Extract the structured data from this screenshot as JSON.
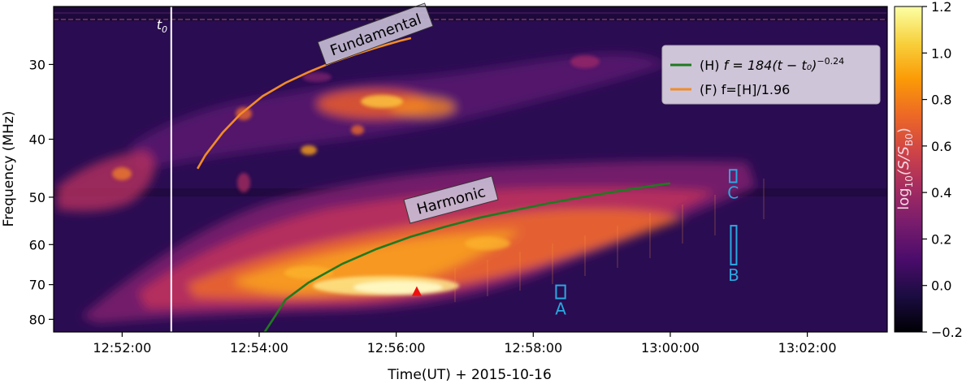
{
  "chart_data": {
    "type": "heatmap",
    "xlabel": "Time(UT) + 2015-10-16",
    "ylabel": "Frequency (MHz)",
    "xlim": [
      "12:51:00",
      "13:03:10"
    ],
    "ylim": [
      84,
      24
    ],
    "y_scale": "log",
    "grid": false,
    "x_ticks": [
      "12:52:00",
      "12:54:00",
      "12:56:00",
      "12:58:00",
      "13:00:00",
      "13:02:00"
    ],
    "y_ticks": [
      30,
      40,
      50,
      60,
      70,
      80
    ],
    "colorbar": {
      "label": "log₁₀(S/S_B0)",
      "label_main": "log",
      "label_sub": "10",
      "label_rest": "(S/S",
      "label_sub2": "B0",
      "label_end": ")",
      "range": [
        -0.2,
        1.2
      ],
      "ticks": [
        "−0.2",
        "0.0",
        "0.2",
        "0.4",
        "0.6",
        "0.8",
        "1.0",
        "1.2"
      ],
      "colormap": "inferno",
      "colors": [
        "#000004",
        "#1b0c41",
        "#4a0c6b",
        "#781c6d",
        "#a52c60",
        "#cf4446",
        "#ed6925",
        "#fb9b06",
        "#f7d13d",
        "#fcffa4"
      ]
    },
    "t0": {
      "label": "t",
      "label_sub": "0",
      "time": "12:52:43"
    },
    "legend": {
      "placement": "upper-right",
      "entries": [
        {
          "prefix": "(H) ",
          "formula": "f = 184(t − t₀)",
          "exponent": "−0.24",
          "color": "#1f7a1f"
        },
        {
          "prefix": "(F) ",
          "formula": "f=[H]/1.96",
          "exponent": "",
          "color": "#f28c28"
        }
      ]
    },
    "series": [
      {
        "key": "harmonic",
        "label": "Harmonic",
        "color": "#1f7a1f",
        "points": [
          [
            80,
            85
          ],
          [
            90,
            79.5
          ],
          [
            100,
            74.2
          ],
          [
            120,
            69.5
          ],
          [
            150,
            64.6
          ],
          [
            180,
            61.0
          ],
          [
            210,
            58.2
          ],
          [
            240,
            56.0
          ],
          [
            270,
            54.1
          ],
          [
            300,
            52.6
          ],
          [
            330,
            51.2
          ],
          [
            360,
            50.0
          ],
          [
            390,
            48.9
          ],
          [
            420,
            47.9
          ],
          [
            437,
            47.4
          ]
        ]
      },
      {
        "key": "fundamental",
        "label": "Fundamental",
        "color": "#f28c28",
        "points": [
          [
            23,
            44.8
          ],
          [
            30,
            42.5
          ],
          [
            45,
            39.0
          ],
          [
            60,
            36.4
          ],
          [
            80,
            33.9
          ],
          [
            100,
            32.2
          ],
          [
            120,
            30.9
          ],
          [
            140,
            29.8
          ],
          [
            160,
            28.9
          ],
          [
            180,
            28.1
          ],
          [
            200,
            27.4
          ],
          [
            210,
            27.1
          ]
        ]
      }
    ],
    "regions": [
      {
        "label": "A",
        "t_start": "12:58:20",
        "t_end": "12:58:28",
        "f_low": 70.2,
        "f_high": 73.8,
        "color": "#2aa8e0"
      },
      {
        "label": "B",
        "t_start": "13:00:53",
        "t_end": "13:00:58",
        "f_low": 55.8,
        "f_high": 64.8,
        "color": "#2aa8e0"
      },
      {
        "label": "C",
        "t_start": "13:00:52",
        "t_end": "13:00:58",
        "f_low": 45.0,
        "f_high": 47.2,
        "color": "#2aa8e0"
      }
    ],
    "marker": {
      "shape": "triangle",
      "time": "12:56:18",
      "freq": 72.0,
      "color": "#ee1111"
    }
  }
}
